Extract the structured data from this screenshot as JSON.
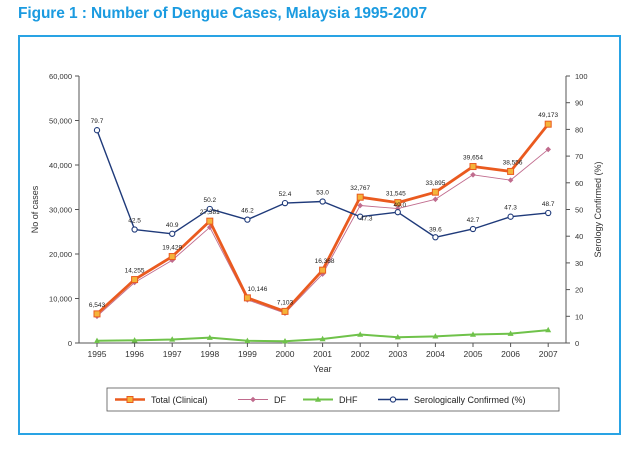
{
  "figure_title": "Figure 1 : Number of Dengue Cases, Malaysia 1995-2007",
  "colors": {
    "title": "#1b9be0",
    "frame": "#29a3e4",
    "total": "#ea5a1f",
    "total_marker_fill": "#f4b43a",
    "df": "#c06b8d",
    "dhf": "#6fc24a",
    "serology": "#1f3a7a"
  },
  "chart_data": {
    "type": "line",
    "xlabel": "Year",
    "ylabel": "No of cases",
    "y2label": "Serology Confirmed (%)",
    "ylim": [
      0,
      60000
    ],
    "y2lim": [
      0,
      100
    ],
    "y_ticks": [
      "0",
      "10,000",
      "20,000",
      "30,000",
      "40,000",
      "50,000",
      "60,000"
    ],
    "y_tick_values": [
      0,
      10000,
      20000,
      30000,
      40000,
      50000,
      60000
    ],
    "y2_ticks": [
      "0",
      "10",
      "20",
      "30",
      "40",
      "50",
      "60",
      "70",
      "80",
      "90",
      "100"
    ],
    "y2_tick_values": [
      0,
      10,
      20,
      30,
      40,
      50,
      60,
      70,
      80,
      90,
      100
    ],
    "categories": [
      "1995",
      "1996",
      "1997",
      "1998",
      "1999",
      "2000",
      "2001",
      "2002",
      "2003",
      "2004",
      "2005",
      "2006",
      "2007"
    ],
    "series": [
      {
        "name": "Total (Clinical)",
        "axis": "left",
        "values": [
          6543,
          14255,
          19429,
          27381,
          10146,
          7103,
          16368,
          32767,
          31545,
          33895,
          39654,
          38556,
          49173
        ],
        "labels": [
          "6,543",
          "14,255",
          "19,429",
          "27,381",
          "10,146",
          "7,103",
          "16,368",
          "32,767",
          "31,545",
          "33,895",
          "39,654",
          "38,556",
          "49,173"
        ]
      },
      {
        "name": "DF",
        "axis": "left",
        "values": [
          6000,
          13600,
          18600,
          26000,
          9700,
          6700,
          15500,
          30900,
          30200,
          32300,
          37800,
          36600,
          43500
        ]
      },
      {
        "name": "DHF",
        "axis": "left",
        "values": [
          500,
          600,
          800,
          1200,
          500,
          400,
          900,
          1900,
          1300,
          1500,
          1900,
          2100,
          2900
        ]
      },
      {
        "name": "Serologically Confirmed (%)",
        "axis": "right",
        "values": [
          79.7,
          42.5,
          40.9,
          50.2,
          46.2,
          52.4,
          53.0,
          47.3,
          49.0,
          39.6,
          42.7,
          47.3,
          48.7
        ],
        "labels": [
          "79.7",
          "42.5",
          "40.9",
          "50.2",
          "46.2",
          "52.4",
          "53.0",
          "47.3",
          "49.0",
          "39.6",
          "42.7",
          "47.3",
          "48.7"
        ]
      }
    ],
    "legend_position": "bottom",
    "grid": false
  }
}
